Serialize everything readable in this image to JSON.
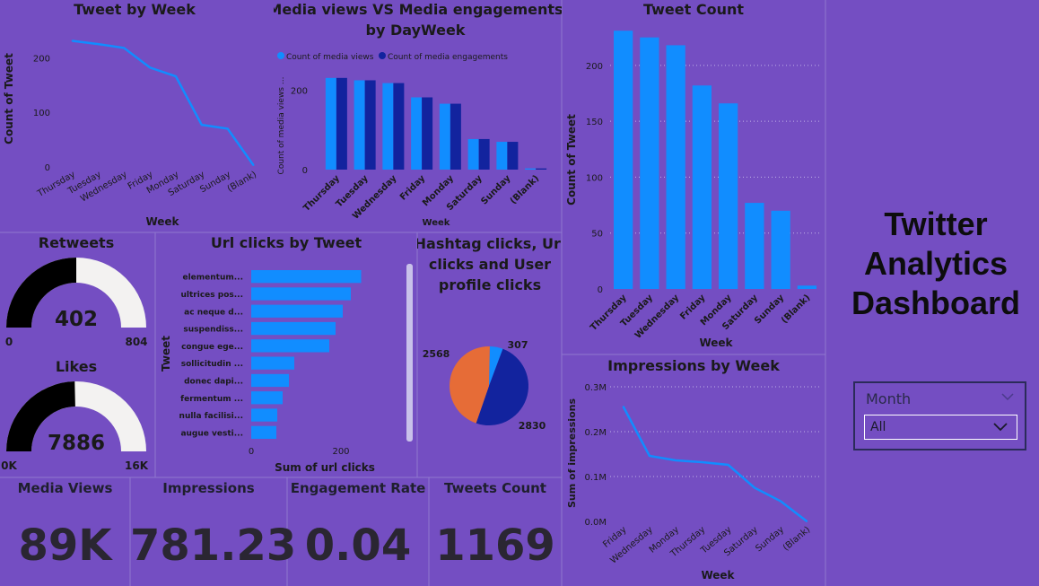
{
  "colors": {
    "bg": "#744ec2",
    "primary": "#118dff",
    "dark": "#12239e",
    "orange": "#e66c37",
    "gauge_fill": "#000000",
    "gauge_track": "#f3f2f1"
  },
  "dashboard_title": {
    "line1": "Twitter",
    "line2": "Analytics",
    "line3": "Dashboard"
  },
  "slicer": {
    "title": "Month",
    "value": "All",
    "icon": "chevron-down-icon"
  },
  "kpis": [
    {
      "label": "Media Views",
      "value": "89K"
    },
    {
      "label": "Impressions",
      "value": "781.23"
    },
    {
      "label": "Engagement Rate",
      "value": "0.04"
    },
    {
      "label": "Tweets Count",
      "value": "1169"
    }
  ],
  "chart_data": [
    {
      "id": "tweet_by_week",
      "type": "line",
      "title": "Tweet by Week",
      "xlabel": "Week",
      "ylabel": "Count of Tweet",
      "categories": [
        "Thursday",
        "Tuesday",
        "Wednesday",
        "Friday",
        "Monday",
        "Saturday",
        "Sunday",
        "(Blank)"
      ],
      "values": [
        231,
        225,
        218,
        182,
        166,
        77,
        70,
        3
      ],
      "yticks": [
        "0",
        "100",
        "200"
      ],
      "ylim": [
        0,
        240
      ]
    },
    {
      "id": "media_views_engagements",
      "type": "bar",
      "title_line1": "Media views VS Media engagements",
      "title_line2": "by DayWeek",
      "xlabel": "Week",
      "ylabel": "Count of media views ...",
      "categories": [
        "Thursday",
        "Tuesday",
        "Wednesday",
        "Friday",
        "Monday",
        "Saturday",
        "Sunday",
        "(Blank)"
      ],
      "series": [
        {
          "name": "Count of media views",
          "values": [
            231,
            225,
            218,
            182,
            166,
            77,
            70,
            3
          ]
        },
        {
          "name": "Count of media engagements",
          "values": [
            231,
            225,
            218,
            182,
            166,
            77,
            70,
            3
          ]
        }
      ],
      "yticks": [
        "0",
        "200"
      ],
      "ylim": [
        0,
        260
      ]
    },
    {
      "id": "tweet_count",
      "type": "bar",
      "title": "Tweet Count",
      "xlabel": "Week",
      "ylabel": "Count of Tweet",
      "categories": [
        "Thursday",
        "Tuesday",
        "Wednesday",
        "Friday",
        "Monday",
        "Saturday",
        "Sunday",
        "(Blank)"
      ],
      "values": [
        231,
        225,
        218,
        182,
        166,
        77,
        70,
        3
      ],
      "yticks": [
        "0",
        "50",
        "100",
        "150",
        "200"
      ],
      "ylim": [
        0,
        240
      ],
      "grid": true
    },
    {
      "id": "retweets_gauge",
      "type": "gauge",
      "title": "Retweets",
      "value": 402,
      "min_label": "0",
      "max_label": "804",
      "value_label": "402",
      "min": 0,
      "max": 804
    },
    {
      "id": "likes_gauge",
      "type": "gauge",
      "title": "Likes",
      "value": 7886,
      "min_label": "0K",
      "max_label": "16K",
      "value_label": "7886",
      "min": 0,
      "max": 16000
    },
    {
      "id": "url_clicks_by_tweet",
      "type": "bar",
      "orientation": "horizontal",
      "title": "Url clicks by Tweet",
      "xlabel": "Sum of url clicks",
      "ylabel": "Tweet",
      "categories": [
        "elementum...",
        "ultrices pos...",
        "ac neque d...",
        "suspendiss...",
        "congue ege...",
        "sollicitudin ...",
        "donec dapi...",
        "fermentum ...",
        "nulla facilisi...",
        "augue vesti..."
      ],
      "values": [
        245,
        222,
        204,
        188,
        174,
        96,
        84,
        70,
        58,
        56
      ],
      "xticks": [
        "0",
        "200"
      ],
      "xlim": [
        0,
        330
      ]
    },
    {
      "id": "hashtag_url_profile_clicks",
      "type": "pie",
      "title_line1": "Hashtag clicks, Url",
      "title_line2": "clicks and User",
      "title_line3": "profile clicks",
      "slices": [
        {
          "label": "307",
          "value": 307
        },
        {
          "label": "2830",
          "value": 2830
        },
        {
          "label": "2568",
          "value": 2568
        }
      ]
    },
    {
      "id": "impressions_by_week",
      "type": "line",
      "title": "Impressions by Week",
      "xlabel": "Week",
      "ylabel": "Sum of impressions",
      "categories": [
        "Friday",
        "Wednesday",
        "Monday",
        "Thursday",
        "Tuesday",
        "Saturday",
        "Sunday",
        "(Blank)"
      ],
      "values": [
        0.256,
        0.146,
        0.136,
        0.132,
        0.126,
        0.075,
        0.045,
        0.0
      ],
      "yticks": [
        "0.0M",
        "0.1M",
        "0.2M",
        "0.3M"
      ],
      "ylim": [
        0,
        0.3
      ],
      "grid": true
    }
  ]
}
